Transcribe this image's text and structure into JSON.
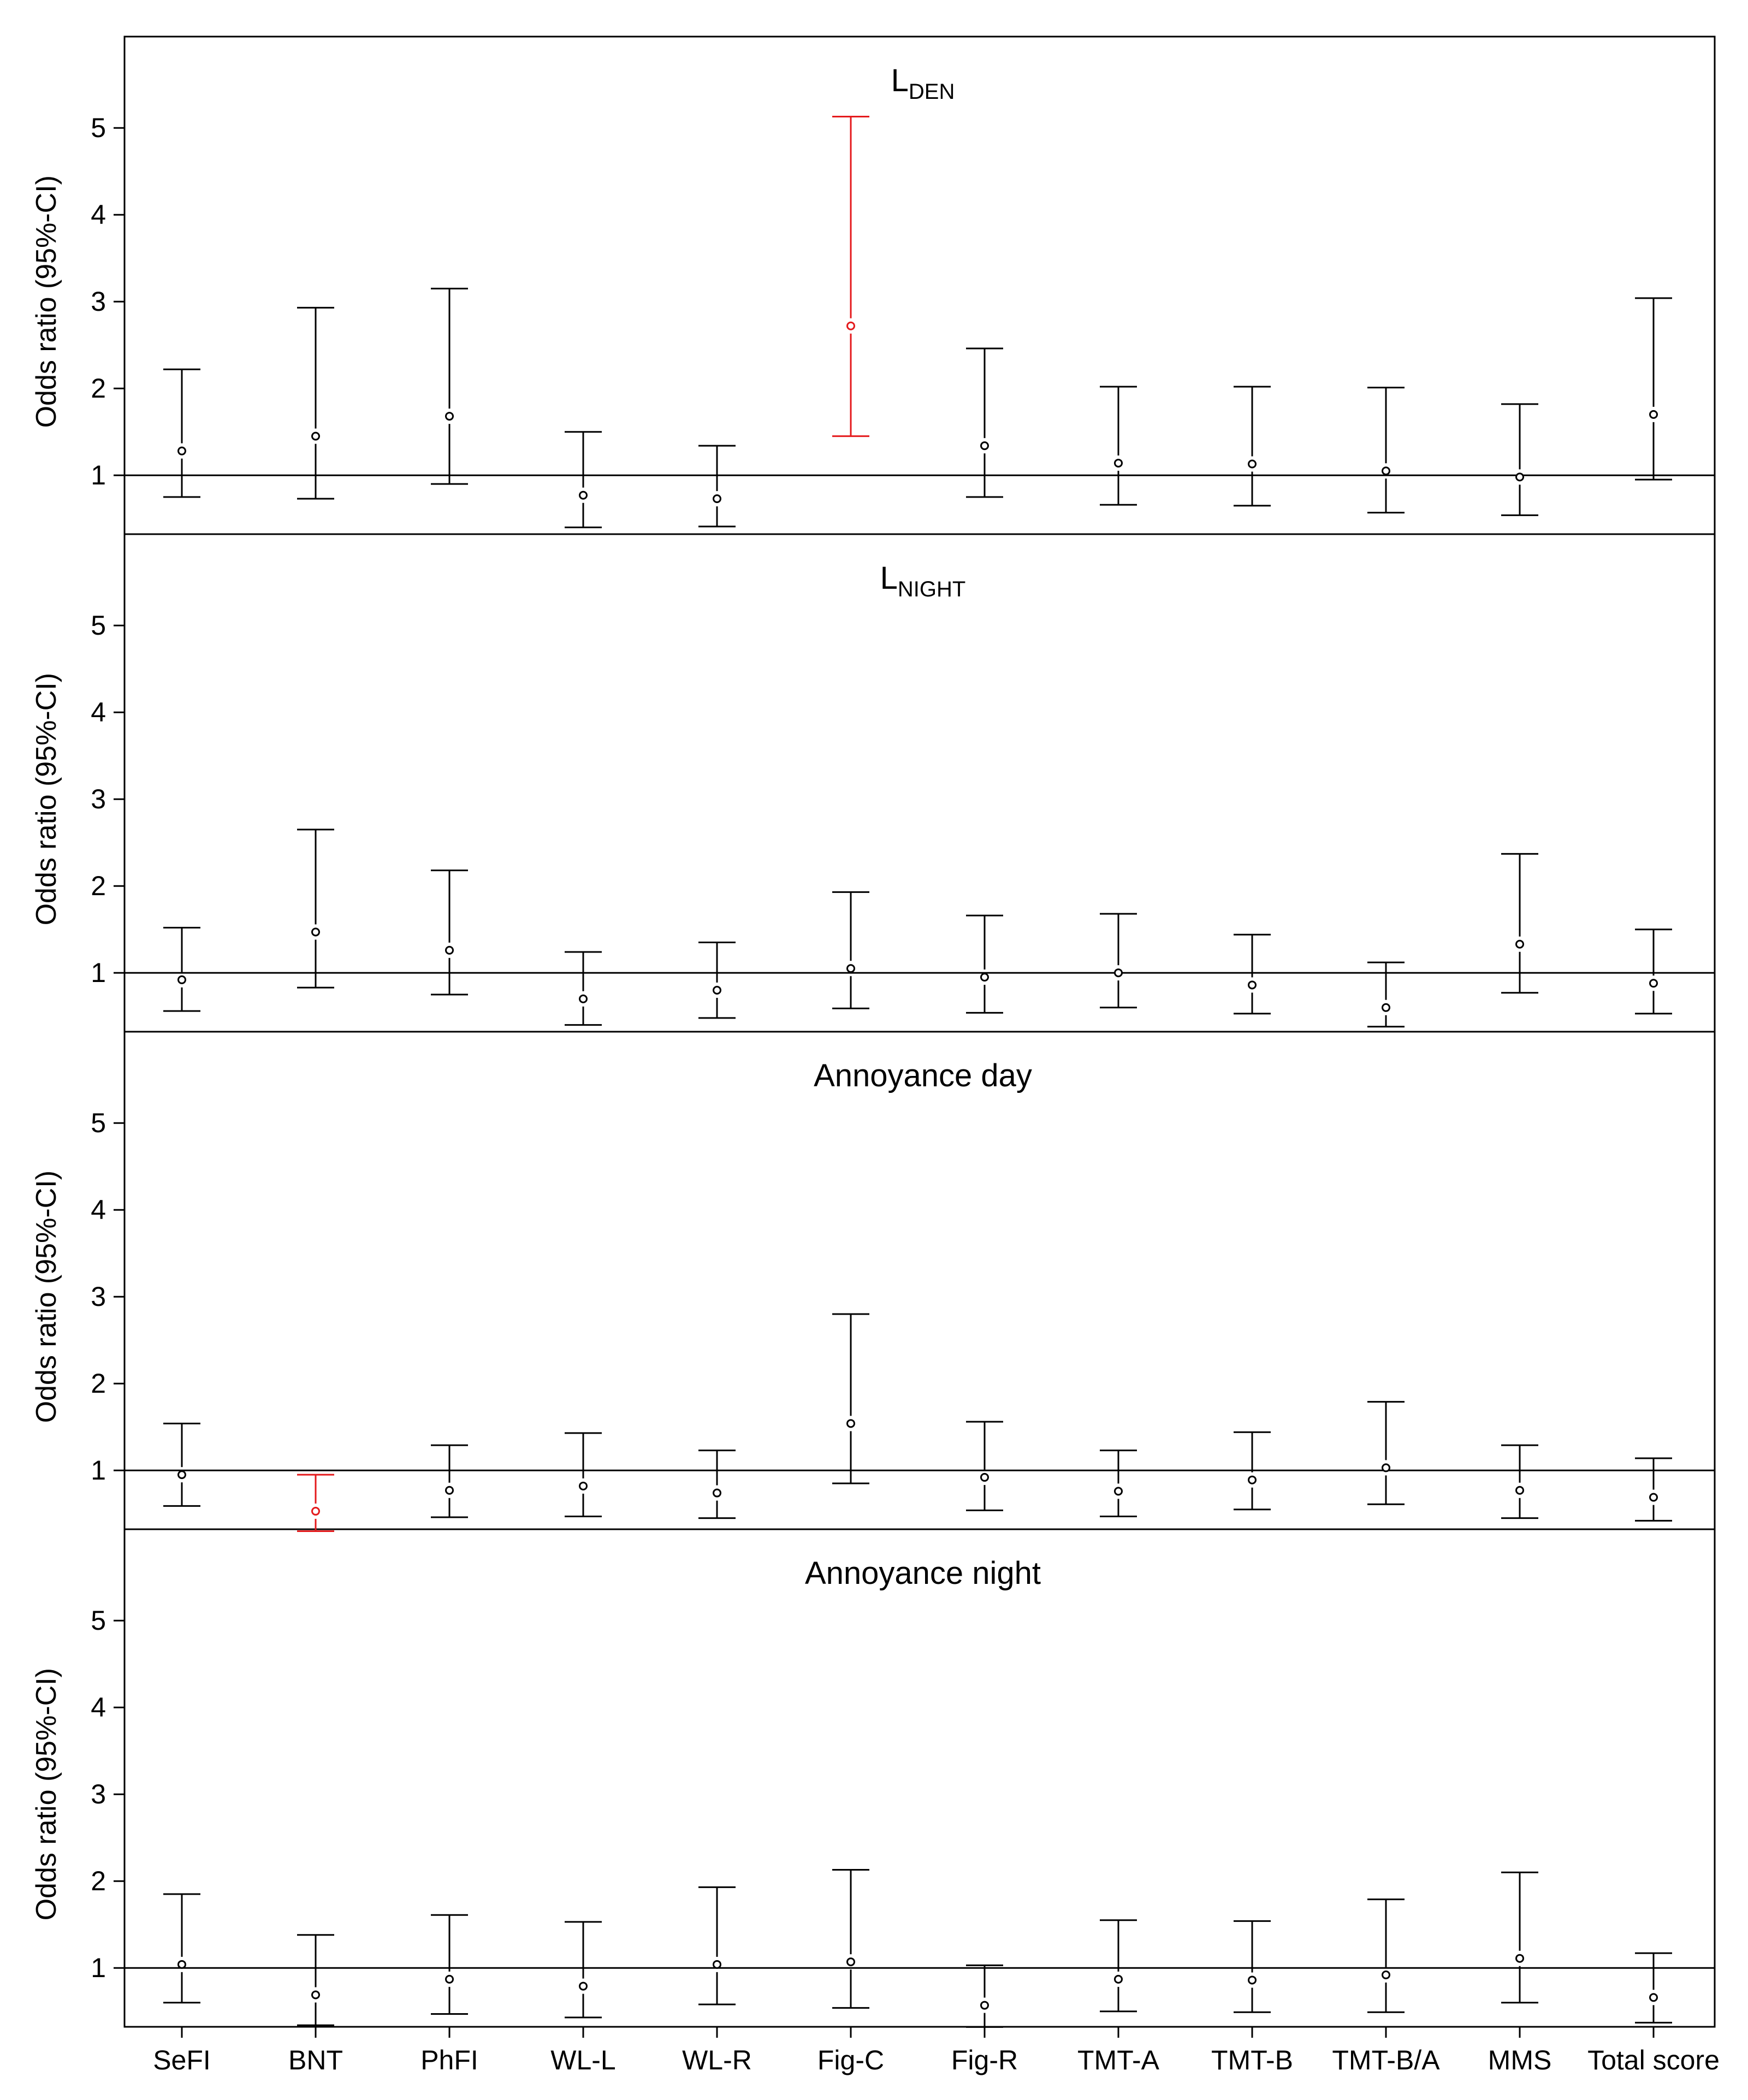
{
  "colors": {
    "normal": "#000000",
    "significant": "#e41a1c"
  },
  "chart_data": {
    "type": "errorbar",
    "ylabel": "Odds ratio (95%-CI)",
    "yticks": [
      1,
      2,
      3,
      4,
      5
    ],
    "ylim": [
      0.3,
      5.8
    ],
    "reference_line": 1,
    "categories": [
      "SeFI",
      "BNT",
      "PhFI",
      "WL-L",
      "WL-R",
      "Fig-C",
      "Fig-R",
      "TMT-A",
      "TMT-B",
      "TMT-B/A",
      "MMS",
      "Total score"
    ],
    "panels": [
      {
        "title_main": "L",
        "title_sub": "DEN",
        "estimates": [
          1.28,
          1.45,
          1.68,
          0.77,
          0.73,
          2.72,
          1.34,
          1.14,
          1.13,
          1.05,
          0.98,
          1.7
        ],
        "lower": [
          0.75,
          0.73,
          0.9,
          0.4,
          0.41,
          1.45,
          0.75,
          0.66,
          0.65,
          0.57,
          0.54,
          0.95
        ],
        "upper": [
          2.22,
          2.93,
          3.15,
          1.5,
          1.34,
          5.13,
          2.46,
          2.02,
          2.02,
          2.01,
          1.82,
          3.04
        ],
        "significant": [
          false,
          false,
          false,
          false,
          false,
          true,
          false,
          false,
          false,
          false,
          false,
          false
        ]
      },
      {
        "title_main": "L",
        "title_sub": "NIGHT",
        "estimates": [
          0.92,
          1.47,
          1.26,
          0.7,
          0.8,
          1.05,
          0.95,
          1.0,
          0.86,
          0.6,
          1.33,
          0.88
        ],
        "lower": [
          0.56,
          0.83,
          0.75,
          0.4,
          0.48,
          0.59,
          0.54,
          0.6,
          0.53,
          0.38,
          0.77,
          0.53
        ],
        "upper": [
          1.52,
          2.65,
          2.18,
          1.24,
          1.35,
          1.93,
          1.66,
          1.68,
          1.44,
          1.12,
          2.37,
          1.5
        ],
        "significant": [
          false,
          false,
          false,
          false,
          false,
          false,
          false,
          false,
          false,
          false,
          false,
          false
        ]
      },
      {
        "title_main": "Annoyance day",
        "title_sub": "",
        "estimates": [
          0.95,
          0.53,
          0.77,
          0.82,
          0.74,
          1.54,
          0.92,
          0.76,
          0.89,
          1.03,
          0.77,
          0.69
        ],
        "lower": [
          0.59,
          0.3,
          0.46,
          0.47,
          0.45,
          0.85,
          0.54,
          0.47,
          0.55,
          0.61,
          0.45,
          0.42
        ],
        "upper": [
          1.54,
          0.95,
          1.29,
          1.43,
          1.23,
          2.8,
          1.56,
          1.23,
          1.44,
          1.79,
          1.29,
          1.14
        ],
        "significant": [
          false,
          true,
          false,
          false,
          false,
          false,
          false,
          false,
          false,
          false,
          false,
          false
        ]
      },
      {
        "title_main": "Annoyance night",
        "title_sub": "",
        "estimates": [
          1.04,
          0.69,
          0.87,
          0.79,
          1.04,
          1.07,
          0.57,
          0.87,
          0.86,
          0.92,
          1.11,
          0.66
        ],
        "lower": [
          0.6,
          0.34,
          0.47,
          0.43,
          0.58,
          0.54,
          0.32,
          0.5,
          0.49,
          0.49,
          0.6,
          0.37
        ],
        "upper": [
          1.85,
          1.38,
          1.61,
          1.53,
          1.93,
          2.13,
          1.03,
          1.55,
          1.54,
          1.79,
          2.1,
          1.17
        ],
        "significant": [
          false,
          false,
          false,
          false,
          false,
          false,
          false,
          false,
          false,
          false,
          false,
          false
        ]
      }
    ]
  }
}
